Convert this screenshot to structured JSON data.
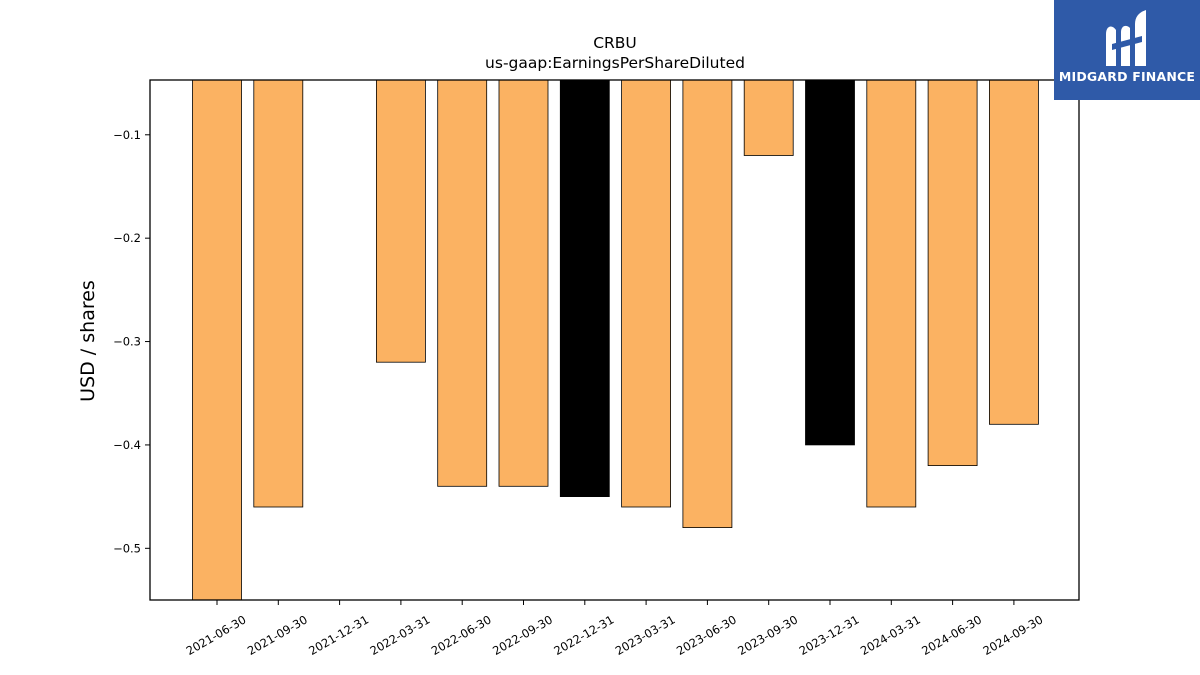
{
  "brand": {
    "name": "MIDGARD FINANCE",
    "color": "#2f5aa8"
  },
  "chart_data": {
    "type": "bar",
    "title": "CRBU",
    "subtitle": "us-gaap:EarningsPerShareDiluted",
    "xlabel": "",
    "ylabel": "USD / shares",
    "categories": [
      "2021-06-30",
      "2021-09-30",
      "2021-12-31",
      "2022-03-31",
      "2022-06-30",
      "2022-09-30",
      "2022-12-31",
      "2023-03-31",
      "2023-06-30",
      "2023-09-30",
      "2023-12-31",
      "2024-03-31",
      "2024-06-30",
      "2024-09-30"
    ],
    "values": [
      -0.55,
      -0.46,
      null,
      -0.32,
      -0.44,
      -0.44,
      -0.45,
      -0.46,
      -0.48,
      -0.12,
      -0.4,
      -0.46,
      -0.42,
      -0.38
    ],
    "bar_colors": [
      "#fbb262",
      "#fbb262",
      "#fbb262",
      "#fbb262",
      "#fbb262",
      "#fbb262",
      "#000000",
      "#fbb262",
      "#fbb262",
      "#fbb262",
      "#000000",
      "#fbb262",
      "#fbb262",
      "#fbb262"
    ],
    "ylim": [
      -0.55,
      -0.047
    ],
    "yticks": [
      -0.1,
      -0.2,
      -0.3,
      -0.4,
      -0.5
    ],
    "ytick_labels": [
      "−0.1",
      "−0.2",
      "−0.3",
      "−0.4",
      "−0.5"
    ],
    "grid": false,
    "legend": "none"
  }
}
